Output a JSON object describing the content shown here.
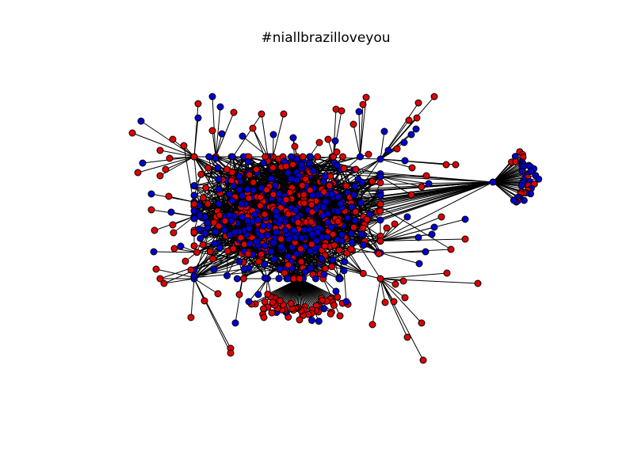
{
  "title": "#niallbrazilloveyou",
  "colors": {
    "group_a": "#dd0000",
    "group_b": "#0000cc",
    "edge": "#000000",
    "background": "#ffffff"
  },
  "graph": {
    "layout": "force-directed",
    "node_groups": [
      "group_a",
      "group_b"
    ],
    "clusters": [
      "main-core",
      "right-fan-hub",
      "bottom-fan-hub"
    ]
  }
}
